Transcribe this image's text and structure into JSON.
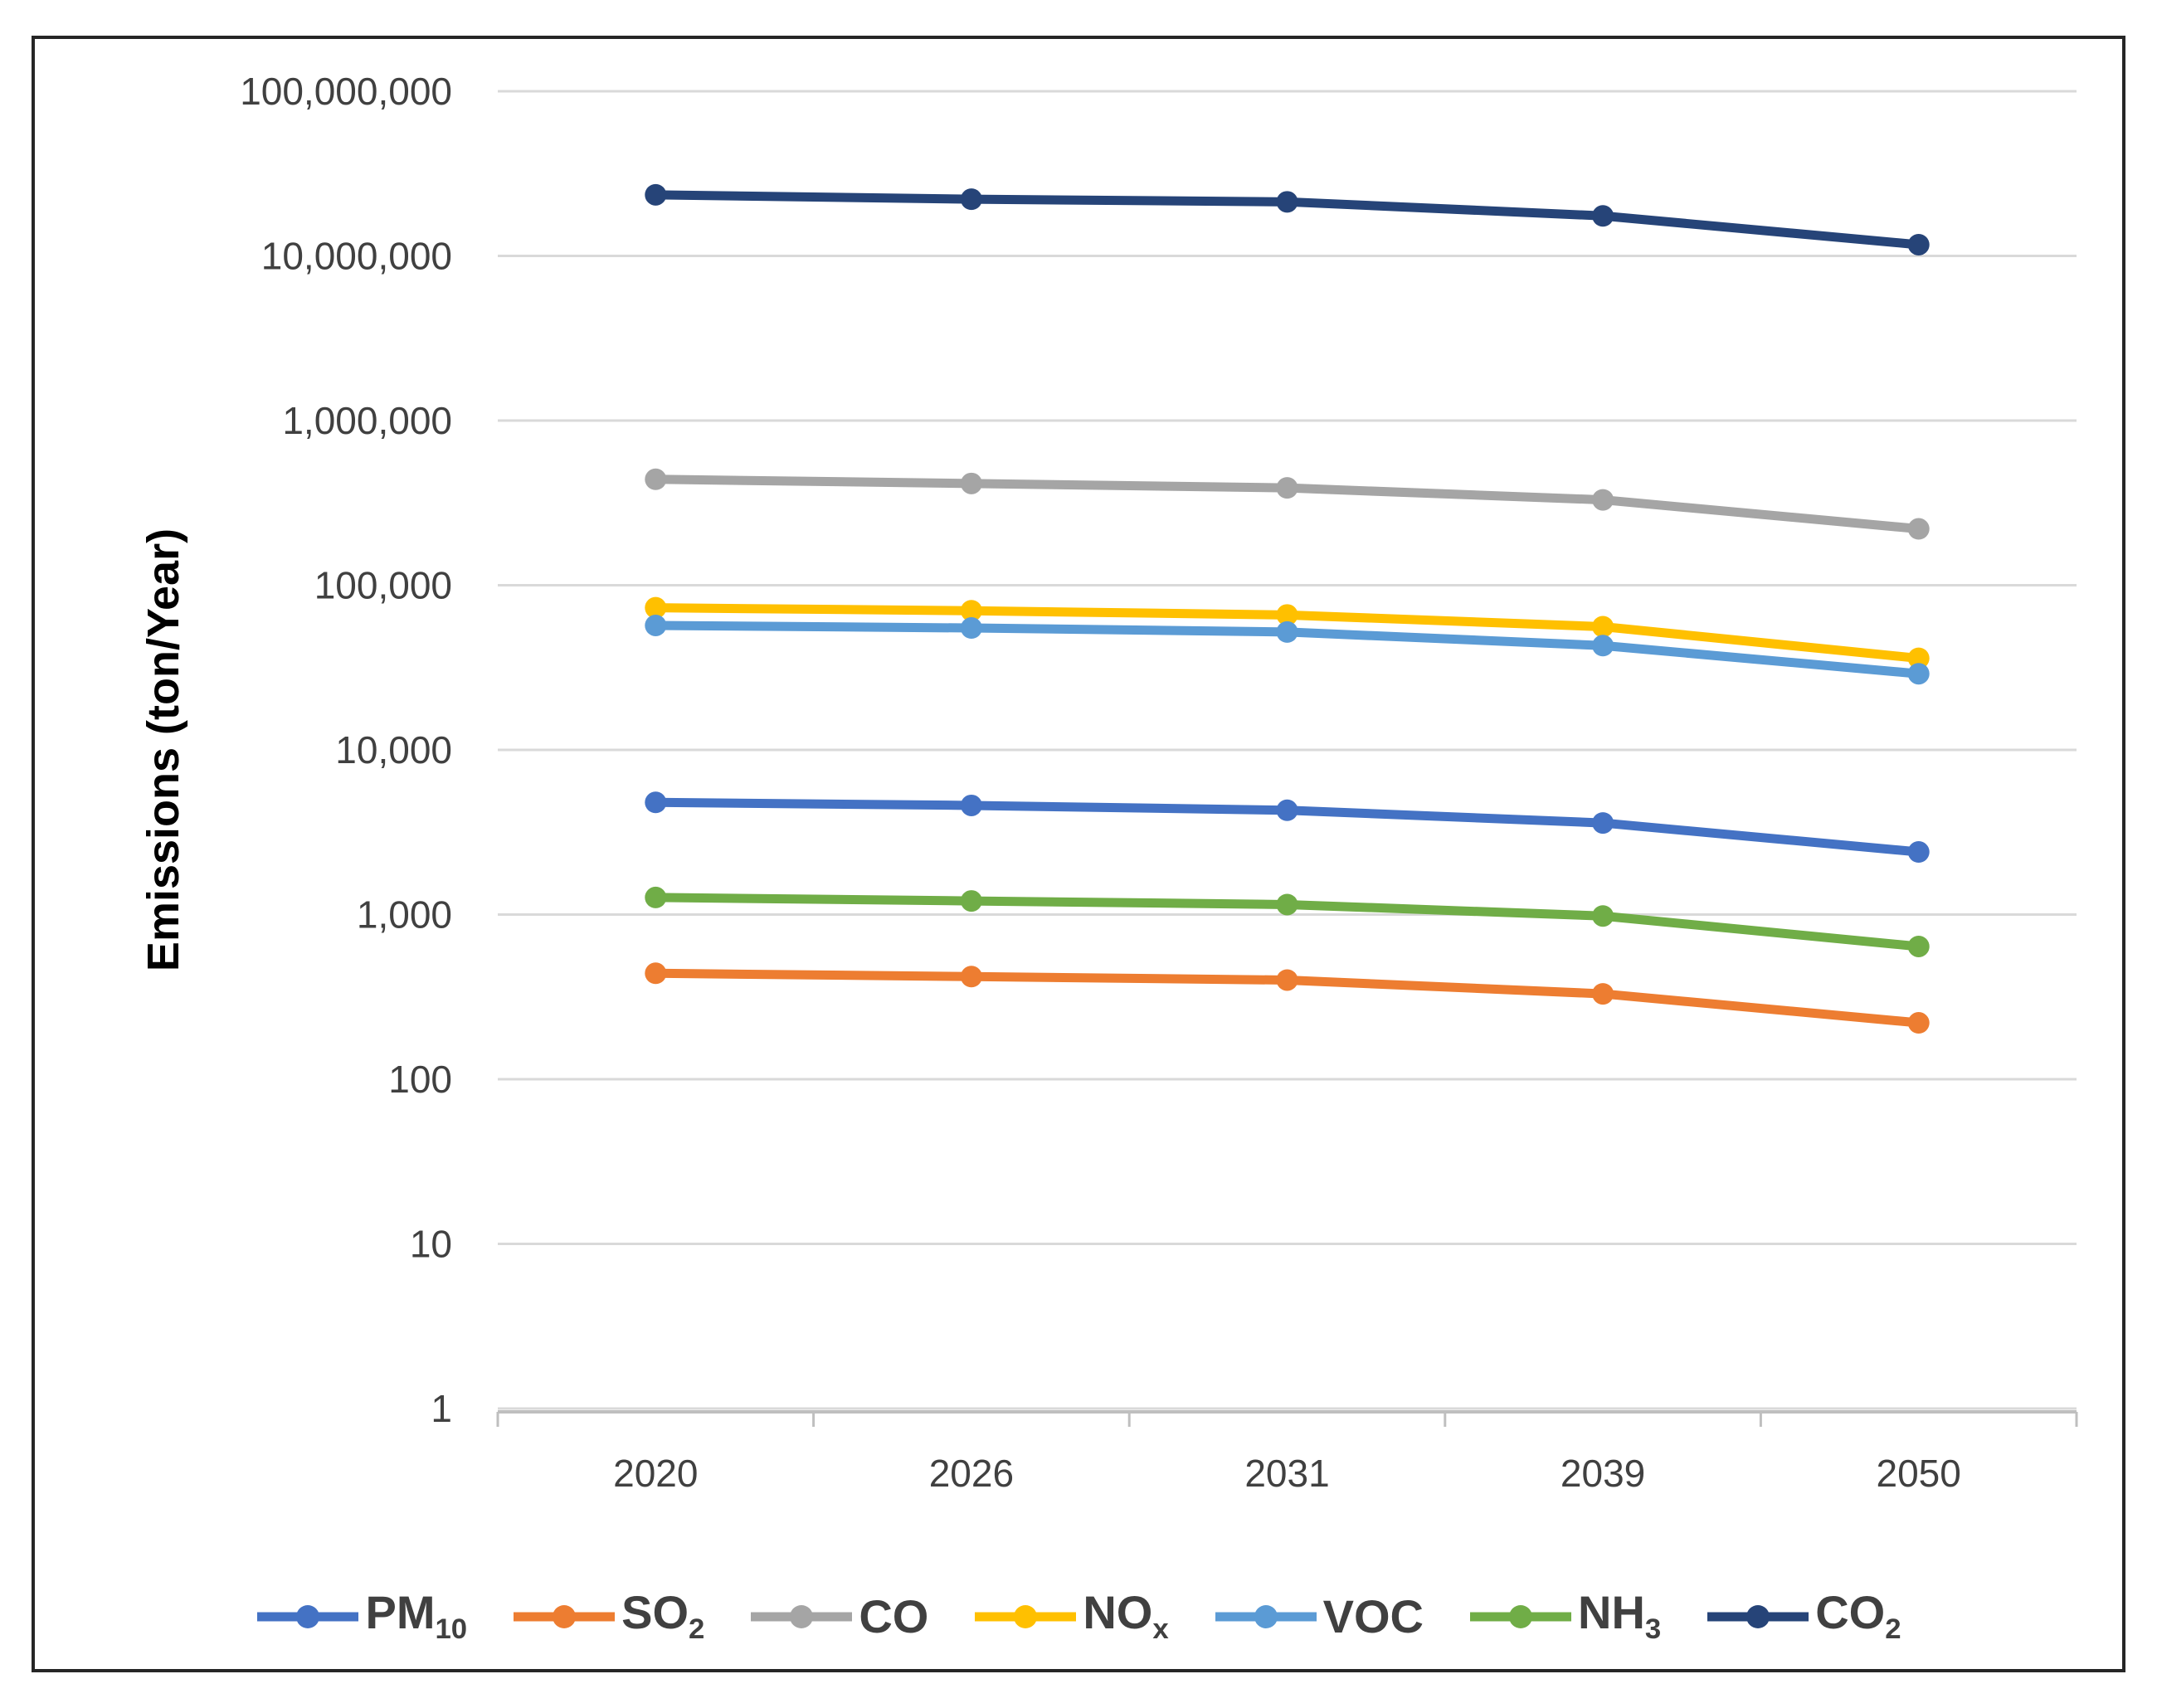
{
  "page": {
    "background": "#ffffff",
    "frame_border_color": "#262626"
  },
  "chart_data": {
    "type": "line",
    "title": "",
    "ylabel": "Emissions (ton/Year)",
    "xlabel": "",
    "y_scale": "log10",
    "ylim": [
      1,
      100000000
    ],
    "grid": true,
    "legend_position": "bottom",
    "y_ticks": [
      {
        "value": 100000000,
        "label": "100,000,000"
      },
      {
        "value": 10000000,
        "label": "10,000,000"
      },
      {
        "value": 1000000,
        "label": "1,000,000"
      },
      {
        "value": 100000,
        "label": "100,000"
      },
      {
        "value": 10000,
        "label": "10,000"
      },
      {
        "value": 1000,
        "label": "1,000"
      },
      {
        "value": 100,
        "label": "100"
      },
      {
        "value": 10,
        "label": "10"
      },
      {
        "value": 1,
        "label": "1"
      }
    ],
    "categories": [
      "2020",
      "2026",
      "2031",
      "2039",
      "2050"
    ],
    "series": [
      {
        "name": "PM10",
        "label_base": "PM",
        "label_sub": "10",
        "color": "#4472C4",
        "values": [
          4800,
          4600,
          4300,
          3600,
          2400
        ]
      },
      {
        "name": "SO2",
        "label_base": "SO",
        "label_sub": "2",
        "color": "#ED7D31",
        "values": [
          440,
          420,
          400,
          330,
          220
        ]
      },
      {
        "name": "CO",
        "label_base": "CO",
        "label_sub": "",
        "color": "#A5A5A5",
        "values": [
          440000,
          415000,
          390000,
          330000,
          220000
        ]
      },
      {
        "name": "NOx",
        "label_base": "NO",
        "label_sub": "x",
        "color": "#FFC000",
        "values": [
          73000,
          70000,
          66000,
          56000,
          36000
        ]
      },
      {
        "name": "VOC",
        "label_base": "VOC",
        "label_sub": "",
        "color": "#5B9BD5",
        "values": [
          57000,
          55000,
          52000,
          43000,
          29000
        ]
      },
      {
        "name": "NH3",
        "label_base": "NH",
        "label_sub": "3",
        "color": "#70AD47",
        "values": [
          1270,
          1210,
          1150,
          980,
          640
        ]
      },
      {
        "name": "CO2",
        "label_base": "CO",
        "label_sub": "2",
        "color": "#264478",
        "values": [
          23500000,
          22100000,
          21300000,
          17500000,
          11700000
        ]
      }
    ],
    "styles": {
      "gridline_color": "#D9D9D9",
      "axis_line_color": "#BFBFBF",
      "tick_label_color": "#404040",
      "legend_text_color": "#404040",
      "line_width": 11,
      "marker_radius": 13
    }
  }
}
